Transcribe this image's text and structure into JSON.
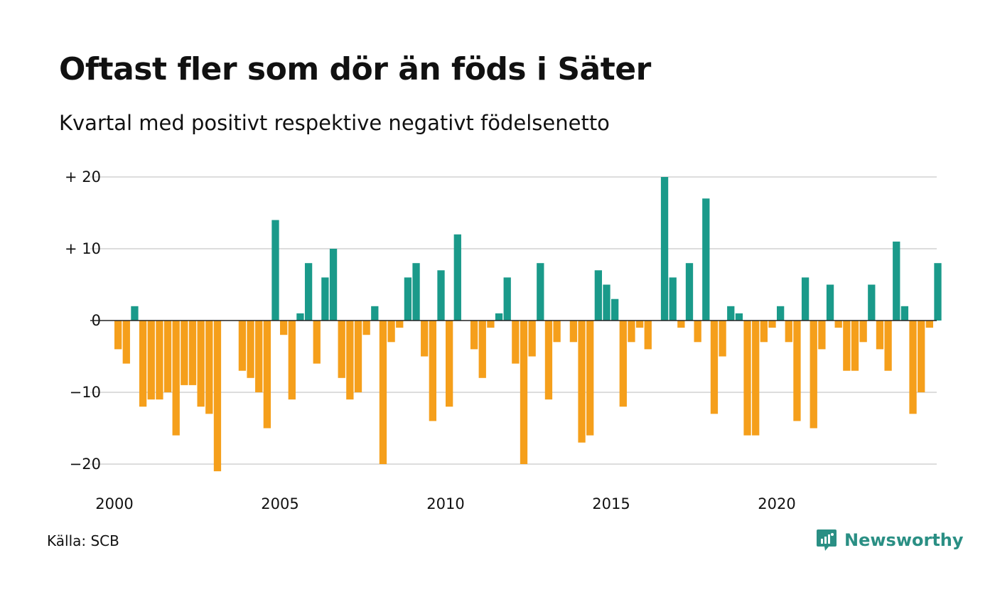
{
  "title": "Oftast fler som dör än föds i Säter",
  "subtitle": "Kvartal med positivt respektive negativt födelsenetto",
  "source": "Källa: SCB",
  "brand": "Newsworthy",
  "colors": {
    "positive": "#1a9a8a",
    "negative": "#f59f1b",
    "grid": "#dddddd",
    "zero": "#222222",
    "brand": "#2a8f84"
  },
  "chart_data": {
    "type": "bar",
    "x_start_year": 2000,
    "quarters_per_year": 4,
    "ylim": [
      -23,
      20
    ],
    "yticks": [
      {
        "value": 20,
        "label": "+ 20"
      },
      {
        "value": 10,
        "label": "+ 10"
      },
      {
        "value": 0,
        "label": "0"
      },
      {
        "value": -10,
        "label": "−10"
      },
      {
        "value": -20,
        "label": "−20"
      }
    ],
    "xticks": [
      {
        "value": 2000,
        "label": "2000"
      },
      {
        "value": 2005,
        "label": "2005"
      },
      {
        "value": 2010,
        "label": "2010"
      },
      {
        "value": 2015,
        "label": "2015"
      },
      {
        "value": 2020,
        "label": "2020"
      }
    ],
    "values": [
      -4,
      -6,
      2,
      -12,
      -11,
      -11,
      -10,
      -16,
      -9,
      -9,
      -12,
      -13,
      -21,
      0,
      0,
      -7,
      -8,
      -10,
      -15,
      14,
      -2,
      -11,
      1,
      8,
      -6,
      6,
      10,
      -8,
      -11,
      -10,
      -2,
      2,
      -20,
      -3,
      -1,
      6,
      8,
      -5,
      -14,
      7,
      -12,
      12,
      0,
      -4,
      -8,
      -1,
      1,
      6,
      -6,
      -20,
      -5,
      8,
      -11,
      -3,
      0,
      -3,
      -17,
      -16,
      7,
      5,
      3,
      -12,
      -3,
      -1,
      -4,
      0,
      20,
      6,
      -1,
      8,
      -3,
      17,
      -13,
      -5,
      2,
      1,
      -16,
      -16,
      -3,
      -1,
      2,
      -3,
      -14,
      6,
      -15,
      -4,
      5,
      -1,
      -7,
      -7,
      -3,
      5,
      -4,
      -7,
      11,
      2,
      -13,
      -10,
      -1,
      8
    ]
  }
}
